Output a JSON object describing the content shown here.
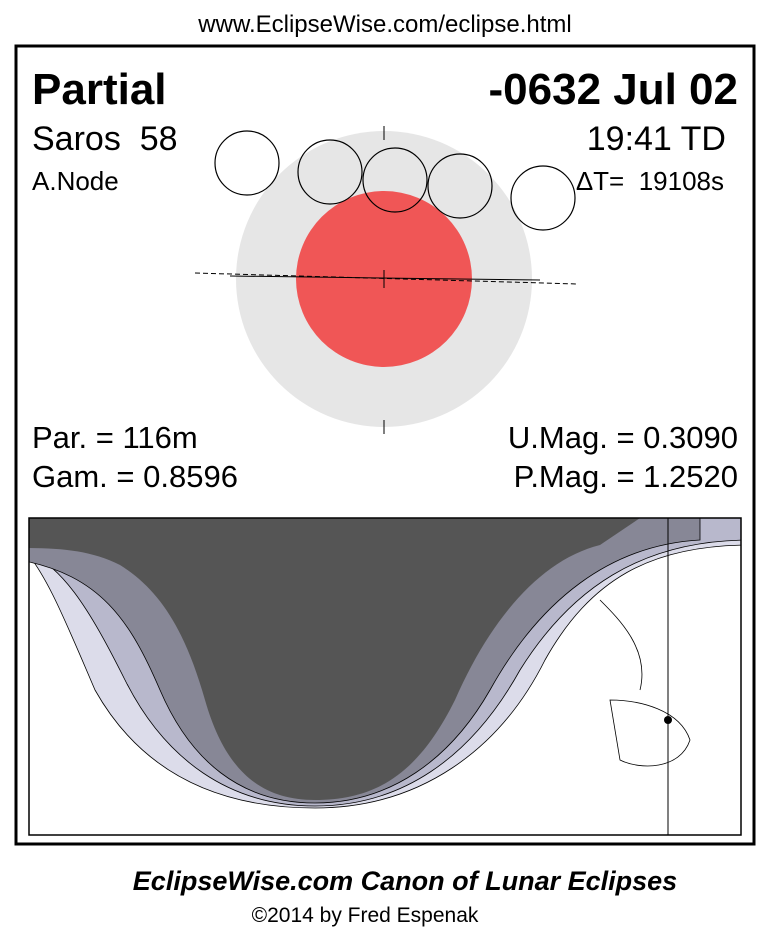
{
  "header": {
    "url": "www.EclipseWise.com/eclipse.html"
  },
  "panel": {
    "type": "Partial",
    "date": "-0632 Jul 02",
    "saros": "Saros  58",
    "time": "19:41 TD",
    "node": "A.Node",
    "delta_t": "ΔT=  19108s",
    "par": "Par. = 116m",
    "umag": "U.Mag. = 0.3090",
    "gamma": "Gam. = 0.8596",
    "pmag": "P.Mag. = 1.2520"
  },
  "footer": {
    "title": "EclipseWise.com Canon of Lunar Eclipses",
    "copyright": "©2014 by Fred Espenak"
  }
}
